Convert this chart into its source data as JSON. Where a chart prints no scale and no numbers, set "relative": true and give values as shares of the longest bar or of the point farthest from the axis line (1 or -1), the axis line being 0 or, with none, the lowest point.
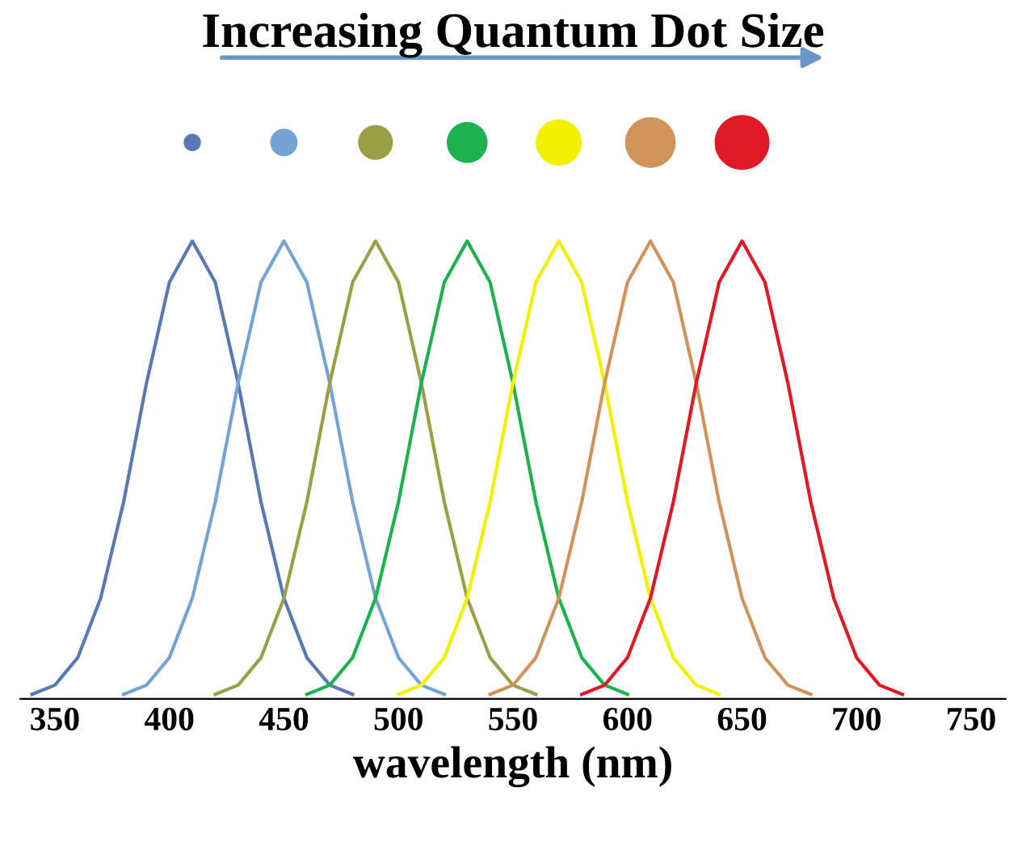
{
  "chart_data": {
    "type": "line",
    "title": "Increasing Quantum Dot Size",
    "xlabel": "wavelength (nm)",
    "relative": true,
    "tick_labels": "x",
    "grid": false,
    "legend": false,
    "marker": "none",
    "line_style": "solid",
    "xlim": [
      335,
      765
    ],
    "xticks": [
      350,
      400,
      450,
      500,
      550,
      600,
      650,
      700,
      750
    ],
    "series": [
      {
        "color": "#5a78b4",
        "x": [
          340,
          350,
          360,
          370,
          380,
          390,
          400,
          410,
          420,
          430,
          440,
          450,
          460,
          470,
          480
        ],
        "values": [
          0.01,
          0.03,
          0.09,
          0.22,
          0.43,
          0.69,
          0.91,
          1,
          0.91,
          0.69,
          0.43,
          0.22,
          0.09,
          0.03,
          0.01
        ]
      },
      {
        "color": "#74a4d4",
        "x": [
          380,
          390,
          400,
          410,
          420,
          430,
          440,
          450,
          460,
          470,
          480,
          490,
          500,
          510,
          520
        ],
        "values": [
          0.01,
          0.03,
          0.09,
          0.22,
          0.43,
          0.69,
          0.91,
          1,
          0.91,
          0.69,
          0.43,
          0.22,
          0.09,
          0.03,
          0.01
        ]
      },
      {
        "color": "#9aa046",
        "x": [
          420,
          430,
          440,
          450,
          460,
          470,
          480,
          490,
          500,
          510,
          520,
          530,
          540,
          550,
          560
        ],
        "values": [
          0.01,
          0.03,
          0.09,
          0.22,
          0.43,
          0.69,
          0.91,
          1,
          0.91,
          0.69,
          0.43,
          0.22,
          0.09,
          0.03,
          0.01
        ]
      },
      {
        "color": "#1fb050",
        "x": [
          460,
          470,
          480,
          490,
          500,
          510,
          520,
          530,
          540,
          550,
          560,
          570,
          580,
          590,
          600
        ],
        "values": [
          0.01,
          0.03,
          0.09,
          0.22,
          0.43,
          0.69,
          0.91,
          1,
          0.91,
          0.69,
          0.43,
          0.22,
          0.09,
          0.03,
          0.01
        ]
      },
      {
        "color": "#f0f000",
        "x": [
          500,
          510,
          520,
          530,
          540,
          550,
          560,
          570,
          580,
          590,
          600,
          610,
          620,
          630,
          640
        ],
        "values": [
          0.01,
          0.03,
          0.09,
          0.22,
          0.43,
          0.69,
          0.91,
          1,
          0.91,
          0.69,
          0.43,
          0.22,
          0.09,
          0.03,
          0.01
        ]
      },
      {
        "color": "#d0945a",
        "x": [
          540,
          550,
          560,
          570,
          580,
          590,
          600,
          610,
          620,
          630,
          640,
          650,
          660,
          670,
          680
        ],
        "values": [
          0.01,
          0.03,
          0.09,
          0.22,
          0.43,
          0.69,
          0.91,
          1,
          0.91,
          0.69,
          0.43,
          0.22,
          0.09,
          0.03,
          0.01
        ]
      },
      {
        "color": "#e01a24",
        "x": [
          580,
          590,
          600,
          610,
          620,
          630,
          640,
          650,
          660,
          670,
          680,
          690,
          700,
          710,
          720
        ],
        "values": [
          0.01,
          0.03,
          0.09,
          0.22,
          0.43,
          0.69,
          0.91,
          1,
          0.91,
          0.69,
          0.43,
          0.22,
          0.09,
          0.03,
          0.01
        ]
      }
    ]
  }
}
